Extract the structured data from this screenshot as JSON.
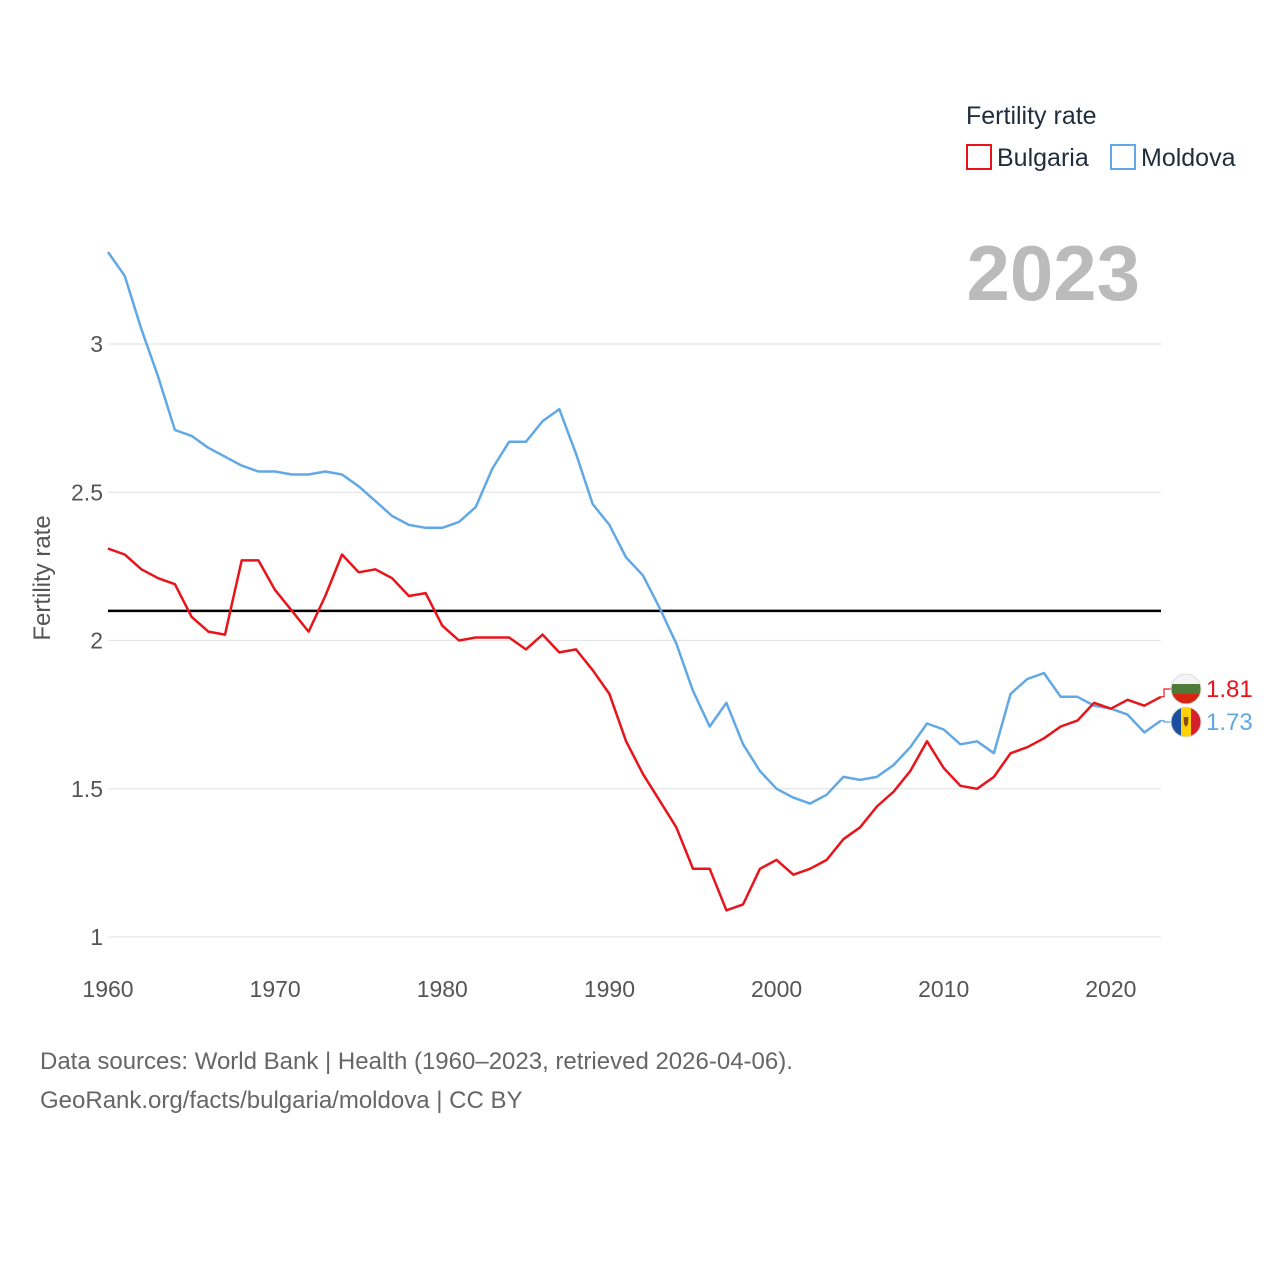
{
  "chart_data": {
    "type": "line",
    "title": "Fertility rate",
    "ylabel": "Fertility rate",
    "xlabel": "",
    "year_label": "2023",
    "xlim": [
      1960,
      2023
    ],
    "ylim": [
      0.9,
      3.35
    ],
    "x_ticks": [
      1960,
      1970,
      1980,
      1990,
      2000,
      2010,
      2020
    ],
    "y_ticks": [
      {
        "value": 1,
        "label": "1"
      },
      {
        "value": 1.5,
        "label": "1.5"
      },
      {
        "value": 2,
        "label": "2"
      },
      {
        "value": 2.5,
        "label": "2.5"
      },
      {
        "value": 3,
        "label": "3"
      }
    ],
    "reference_line": {
      "value": 2.1,
      "color": "#000000"
    },
    "x": [
      1960,
      1961,
      1962,
      1963,
      1964,
      1965,
      1966,
      1967,
      1968,
      1969,
      1970,
      1971,
      1972,
      1973,
      1974,
      1975,
      1976,
      1977,
      1978,
      1979,
      1980,
      1981,
      1982,
      1983,
      1984,
      1985,
      1986,
      1987,
      1988,
      1989,
      1990,
      1991,
      1992,
      1993,
      1994,
      1995,
      1996,
      1997,
      1998,
      1999,
      2000,
      2001,
      2002,
      2003,
      2004,
      2005,
      2006,
      2007,
      2008,
      2009,
      2010,
      2011,
      2012,
      2013,
      2014,
      2015,
      2016,
      2017,
      2018,
      2019,
      2020,
      2021,
      2022,
      2023
    ],
    "series": [
      {
        "name": "Bulgaria",
        "color": "#e8141a",
        "end_label": "1.81",
        "flag": "bulgaria-flag-icon",
        "values": [
          2.31,
          2.29,
          2.24,
          2.21,
          2.19,
          2.08,
          2.03,
          2.02,
          2.27,
          2.27,
          2.17,
          2.1,
          2.03,
          2.15,
          2.29,
          2.23,
          2.24,
          2.21,
          2.15,
          2.16,
          2.05,
          2.0,
          2.01,
          2.01,
          2.01,
          1.97,
          2.02,
          1.96,
          1.97,
          1.9,
          1.82,
          1.66,
          1.55,
          1.46,
          1.37,
          1.23,
          1.23,
          1.09,
          1.11,
          1.23,
          1.26,
          1.21,
          1.23,
          1.26,
          1.33,
          1.37,
          1.44,
          1.49,
          1.56,
          1.66,
          1.57,
          1.51,
          1.5,
          1.54,
          1.62,
          1.64,
          1.67,
          1.71,
          1.73,
          1.79,
          1.77,
          1.8,
          1.78,
          1.81
        ]
      },
      {
        "name": "Moldova",
        "color": "#62a8e5",
        "end_label": "1.73",
        "flag": "moldova-flag-icon",
        "values": [
          3.31,
          3.23,
          3.05,
          2.89,
          2.71,
          2.69,
          2.65,
          2.62,
          2.59,
          2.57,
          2.57,
          2.56,
          2.56,
          2.57,
          2.56,
          2.52,
          2.47,
          2.42,
          2.39,
          2.38,
          2.38,
          2.4,
          2.45,
          2.58,
          2.67,
          2.67,
          2.74,
          2.78,
          2.63,
          2.46,
          2.39,
          2.28,
          2.22,
          2.11,
          1.99,
          1.83,
          1.71,
          1.79,
          1.65,
          1.56,
          1.5,
          1.47,
          1.45,
          1.48,
          1.54,
          1.53,
          1.54,
          1.58,
          1.64,
          1.72,
          1.7,
          1.65,
          1.66,
          1.62,
          1.82,
          1.87,
          1.89,
          1.81,
          1.81,
          1.78,
          1.77,
          1.75,
          1.69,
          1.73
        ]
      }
    ],
    "legend_position": "top-right"
  },
  "footer": {
    "line1": "Data sources: World Bank | Health (1960–2023, retrieved 2026-04-06).",
    "line2": "GeoRank.org/facts/bulgaria/moldova | CC BY"
  }
}
